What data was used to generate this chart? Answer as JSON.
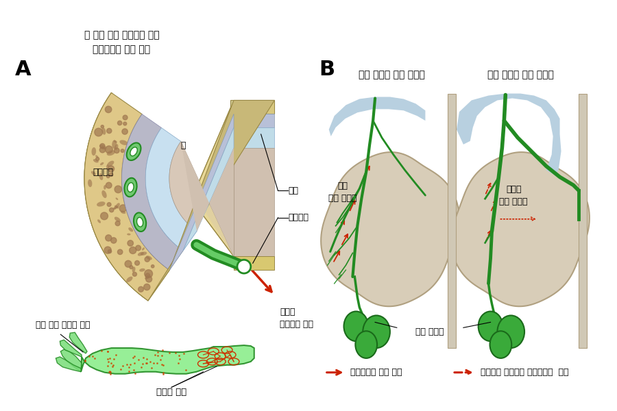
{
  "title_A": "뇌 하부 뇌막 림프관을 통한\n뇌척수액의 배출 경로",
  "label_A": "A",
  "label_B": "B",
  "label_brain": "뇌",
  "label_csf": "뇌척수액",
  "label_meninges": "뇌막",
  "label_skull_space": "두개골공",
  "label_skull_out": "두개골\n바깥으로 배출",
  "label_peripheral": "말초 뇌막 림프관 다발",
  "label_valve": "림프관 판막",
  "title_young": "젊은 생쥐의 뇌막 림프관",
  "title_old": "고령 생쥐의 뇌막 림프관",
  "label_normal_lymph": "정상\n뇌막 림프관",
  "label_aged_lymph": "노화된\n뇌막 림프관",
  "label_cervical": "경부 림프절",
  "legend_normal": "뇌척수액의 정상 배출",
  "legend_aged": "노화에서 감소하는 뇌척수액의  배출",
  "bg_color": "#ffffff",
  "green_main": "#228B22",
  "green_light": "#90EE90",
  "green_dark": "#1a6a1a",
  "red_arrow": "#cc2200",
  "brown_dots": "#8B6050"
}
